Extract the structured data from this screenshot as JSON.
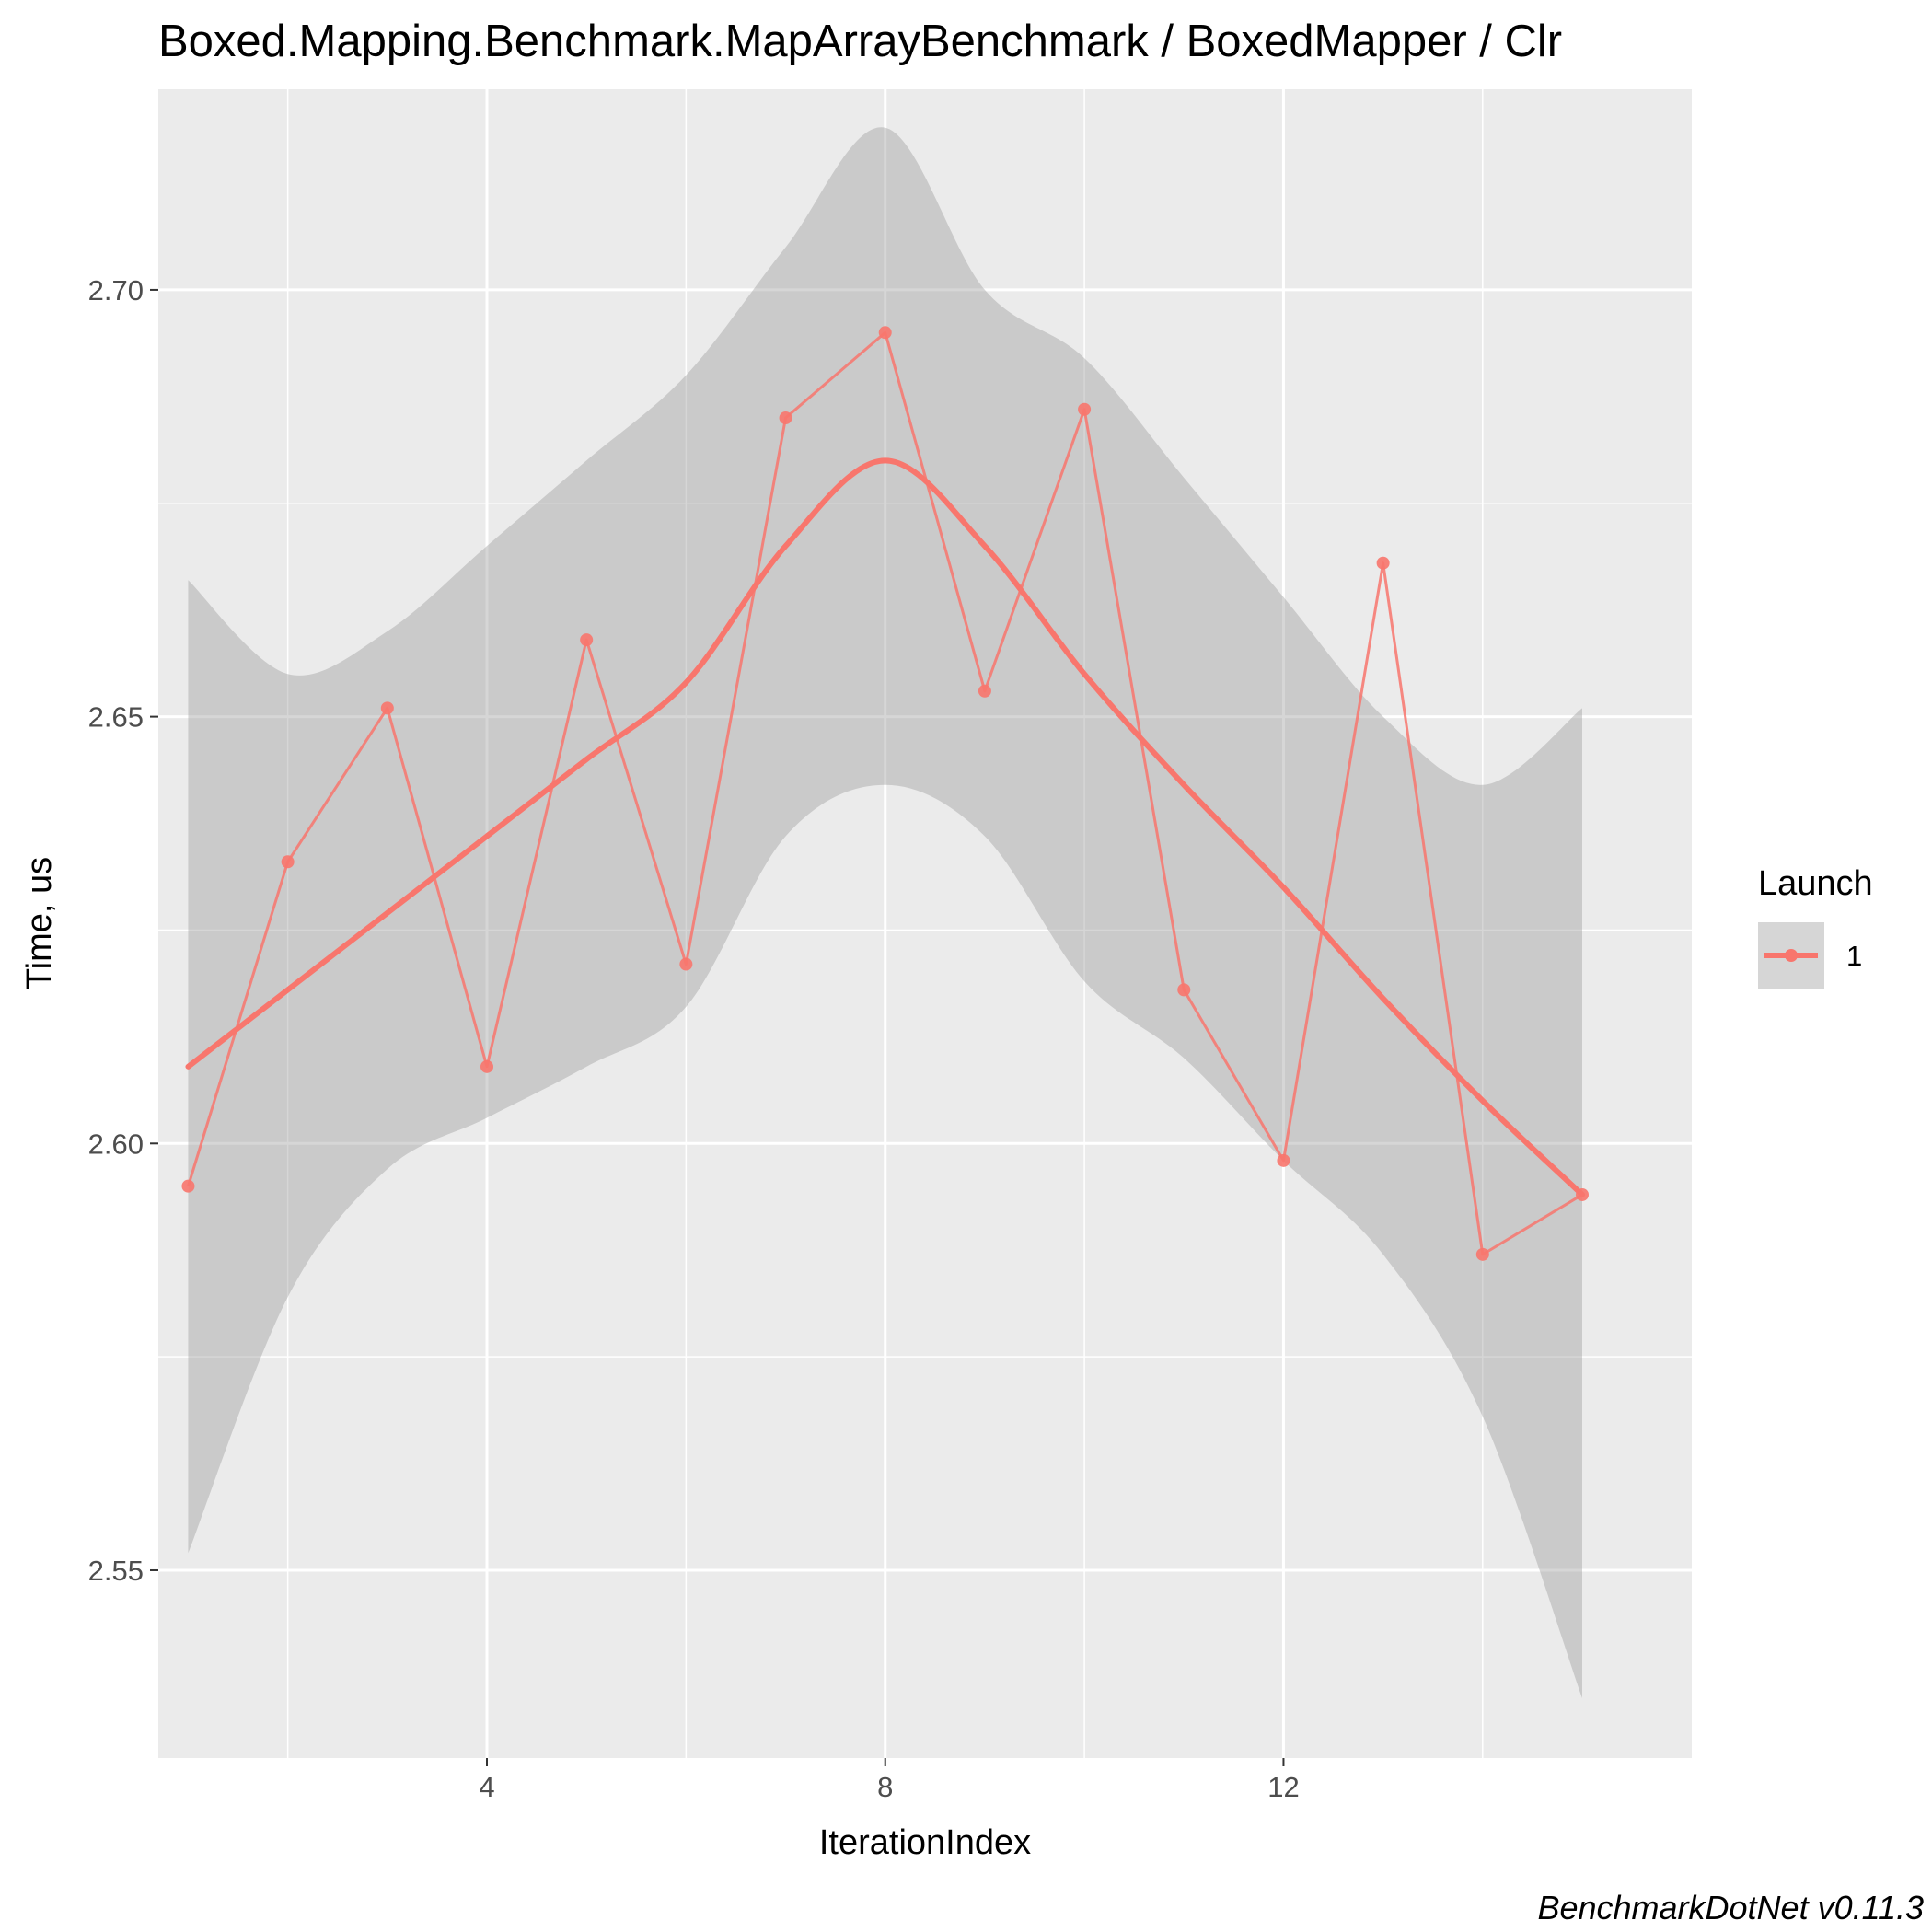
{
  "chart_data": {
    "type": "line",
    "title": "Boxed.Mapping.Benchmark.MapArrayBenchmark / BoxedMapper / Clr",
    "xlabel": "IterationIndex",
    "ylabel": "Time, us",
    "caption": "BenchmarkDotNet v0.11.3",
    "xlim": [
      0.7,
      16.1
    ],
    "ylim": [
      2.528,
      2.7235
    ],
    "x_ticks": [
      4,
      8,
      12
    ],
    "x_tick_labels": [
      "4",
      "8",
      "12"
    ],
    "y_ticks": [
      2.55,
      2.6,
      2.65,
      2.7
    ],
    "y_tick_labels": [
      "2.55",
      "2.60",
      "2.65",
      "2.70"
    ],
    "grid": true,
    "legend": {
      "title": "Launch",
      "position": "right",
      "entries": [
        "1"
      ]
    },
    "colors": {
      "series": "#f8766d",
      "panel": "#ebebeb",
      "ribbon": "#999999",
      "grid": "#ffffff"
    },
    "series": [
      {
        "name": "1",
        "x": [
          1,
          2,
          3,
          4,
          5,
          6,
          7,
          8,
          9,
          10,
          11,
          12,
          13,
          14,
          15
        ],
        "values": [
          2.595,
          2.633,
          2.651,
          2.609,
          2.659,
          2.621,
          2.685,
          2.695,
          2.653,
          2.686,
          2.618,
          2.598,
          2.668,
          2.587,
          2.594
        ]
      }
    ],
    "smooth": {
      "x": [
        1,
        2,
        3,
        4,
        5,
        6,
        7,
        8,
        9,
        10,
        11,
        12,
        13,
        14,
        15
      ],
      "fit": [
        2.609,
        2.618,
        2.627,
        2.636,
        2.645,
        2.654,
        2.67,
        2.68,
        2.67,
        2.655,
        2.642,
        2.63,
        2.617,
        2.605,
        2.594
      ],
      "upper": [
        2.666,
        2.655,
        2.66,
        2.67,
        2.68,
        2.69,
        2.705,
        2.719,
        2.7,
        2.692,
        2.678,
        2.664,
        2.65,
        2.642,
        2.651
      ],
      "lower": [
        2.552,
        2.582,
        2.597,
        2.603,
        2.609,
        2.616,
        2.636,
        2.642,
        2.636,
        2.619,
        2.61,
        2.598,
        2.587,
        2.568,
        2.535
      ]
    }
  }
}
